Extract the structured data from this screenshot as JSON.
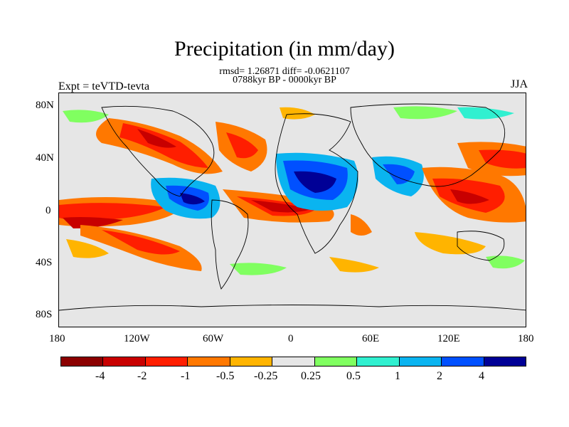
{
  "title": "Precipitation (in mm/day)",
  "stats_line": "rmsd= 1.26871 diff= -0.0621107",
  "period_line": "0788kyr BP - 0000kyr BP",
  "left_label": "Expt = teVTD-tevta",
  "right_label": "JJA",
  "lat_ticks": [
    "80N",
    "40N",
    "0",
    "40S",
    "80S"
  ],
  "lon_ticks": [
    "180",
    "120W",
    "60W",
    "0",
    "60E",
    "120E",
    "180"
  ],
  "colorbar": {
    "colors": [
      "#8b0000",
      "#c80000",
      "#ff1e00",
      "#ff7800",
      "#ffb400",
      "#e6e6e6",
      "#80ff60",
      "#30f0d0",
      "#0ab4f0",
      "#0050ff",
      "#000096"
    ],
    "labels": [
      "-4",
      "-2",
      "-1",
      "-0.5",
      "-0.25",
      "0.25",
      "0.5",
      "1",
      "2",
      "4"
    ]
  }
}
